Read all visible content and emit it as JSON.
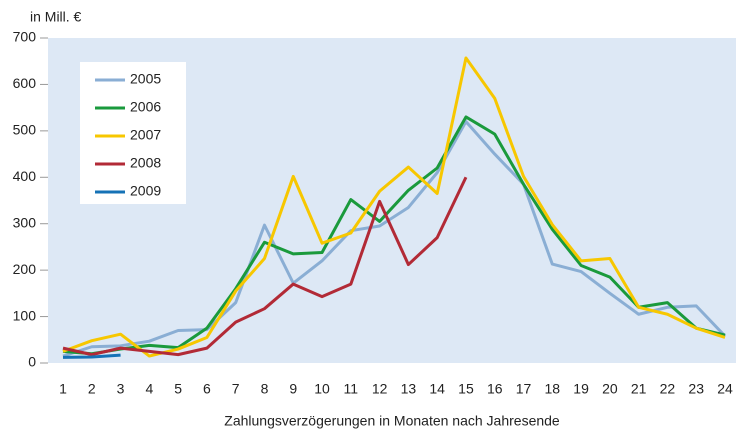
{
  "chart_data": {
    "type": "line",
    "title": "in Mill. €",
    "xlabel": "Zahlungsverzögerungen in Monaten nach Jahresende",
    "categories": [
      "1",
      "2",
      "3",
      "4",
      "5",
      "6",
      "7",
      "8",
      "9",
      "10",
      "11",
      "12",
      "13",
      "14",
      "15",
      "16",
      "17",
      "18",
      "19",
      "20",
      "21",
      "22",
      "23",
      "24"
    ],
    "ylim": [
      0,
      700
    ],
    "yticks": [
      0,
      100,
      200,
      300,
      400,
      500,
      600,
      700
    ],
    "grid": false,
    "legend": "upper left",
    "series": [
      {
        "name": "2005",
        "color": "#8aaed4",
        "values": [
          15,
          35,
          37,
          47,
          70,
          72,
          130,
          297,
          172,
          220,
          285,
          295,
          335,
          410,
          520,
          450,
          385,
          213,
          197,
          150,
          105,
          120,
          123,
          58
        ]
      },
      {
        "name": "2006",
        "color": "#1a9a3c",
        "values": [
          25,
          20,
          30,
          38,
          33,
          75,
          160,
          260,
          235,
          238,
          352,
          305,
          372,
          420,
          530,
          493,
          385,
          288,
          210,
          185,
          120,
          130,
          75,
          60
        ]
      },
      {
        "name": "2007",
        "color": "#f7c700",
        "values": [
          25,
          48,
          62,
          15,
          30,
          55,
          155,
          225,
          402,
          258,
          280,
          370,
          422,
          365,
          657,
          570,
          402,
          298,
          220,
          225,
          120,
          105,
          75,
          55
        ]
      },
      {
        "name": "2008",
        "color": "#b22a36",
        "values": [
          32,
          18,
          32,
          25,
          18,
          32,
          88,
          117,
          170,
          143,
          170,
          348,
          212,
          270,
          400,
          null,
          null,
          null,
          null,
          null,
          null,
          null,
          null,
          null
        ]
      },
      {
        "name": "2009",
        "color": "#1572b6",
        "values": [
          12,
          13,
          17,
          null,
          null,
          null,
          null,
          null,
          null,
          null,
          null,
          null,
          null,
          null,
          null,
          null,
          null,
          null,
          null,
          null,
          null,
          null,
          null,
          null
        ]
      }
    ]
  }
}
